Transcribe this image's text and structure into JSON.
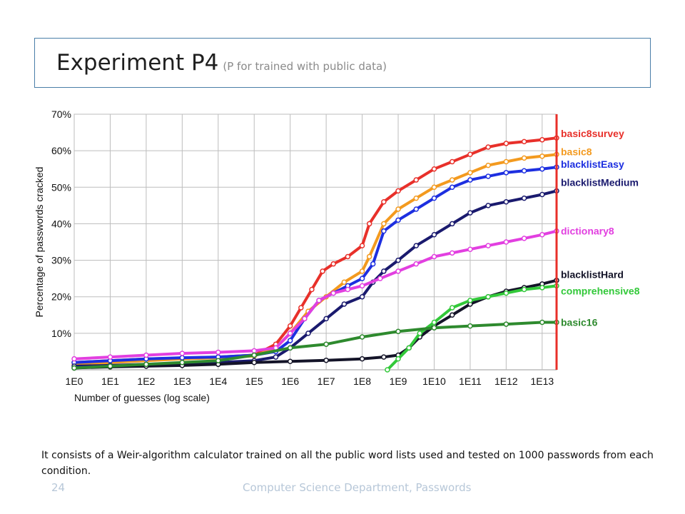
{
  "slide": {
    "title": "Experiment P4",
    "subtitle": "(P for trained with public data)",
    "caption": "It consists of a Weir-algorithm calculator trained on all the public word lists used and tested on 1000 passwords from each condition.",
    "page_number": "24",
    "footer": "Computer Science Department, Passwords"
  },
  "chart_data": {
    "type": "line",
    "xlabel": "Number of guesses (log scale)",
    "ylabel": "Percentage of passwords cracked",
    "x_ticks": [
      "1E0",
      "1E1",
      "1E2",
      "1E3",
      "1E4",
      "1E5",
      "1E6",
      "1E7",
      "1E8",
      "1E9",
      "1E10",
      "1E11",
      "1E12",
      "1E13"
    ],
    "y_ticks": [
      "10%",
      "20%",
      "30%",
      "40%",
      "50%",
      "60%",
      "70%"
    ],
    "xlim": [
      0,
      13.4
    ],
    "ylim": [
      0,
      70
    ],
    "grid": true,
    "cutoff_line_x": 13.4,
    "cutoff_color": "#e8302a",
    "legend_placement": "right, end-of-line labels",
    "series": [
      {
        "name": "basic8survey",
        "color": "#e8302a",
        "x": [
          0,
          1,
          2,
          3,
          4,
          5,
          5.6,
          6,
          6.3,
          6.6,
          6.9,
          7.2,
          7.6,
          8,
          8.2,
          8.6,
          9,
          9.5,
          10,
          10.5,
          11,
          11.5,
          12,
          12.5,
          13,
          13.4
        ],
        "y": [
          2,
          2.5,
          3,
          3.2,
          3.5,
          4,
          7,
          12,
          17,
          22,
          27,
          29,
          31,
          34,
          40,
          46,
          49,
          52,
          55,
          57,
          59,
          61,
          62,
          62.5,
          63,
          63.5
        ]
      },
      {
        "name": "basic8",
        "color": "#f39a1f",
        "x": [
          0,
          1,
          2,
          3,
          4,
          5,
          5.6,
          6,
          6.5,
          7,
          7.5,
          8,
          8.2,
          8.6,
          9,
          9.5,
          10,
          10.5,
          11,
          11.5,
          12,
          12.5,
          13,
          13.4
        ],
        "y": [
          1.5,
          2,
          2.5,
          3,
          3.3,
          3.8,
          6,
          10,
          16,
          20,
          24,
          27,
          31,
          40,
          44,
          47,
          50,
          52,
          54,
          56,
          57,
          58,
          58.5,
          59
        ]
      },
      {
        "name": "blacklistEasy",
        "color": "#1d2fe0",
        "x": [
          0,
          1,
          2,
          3,
          4,
          5,
          5.6,
          6,
          6.4,
          6.8,
          7.2,
          7.6,
          8,
          8.3,
          8.6,
          9,
          9.5,
          10,
          10.5,
          11,
          11.5,
          12,
          12.5,
          13,
          13.4
        ],
        "y": [
          2,
          2.5,
          3,
          3.3,
          3.5,
          4,
          5,
          8,
          14,
          19,
          21,
          23,
          25,
          29,
          38,
          41,
          44,
          47,
          50,
          52,
          53,
          54,
          54.5,
          55,
          55.5
        ]
      },
      {
        "name": "blacklistMedium",
        "color": "#1a1a6e",
        "x": [
          0,
          1,
          2,
          3,
          4,
          5,
          5.6,
          6,
          6.5,
          7,
          7.5,
          8,
          8.3,
          8.6,
          9,
          9.5,
          10,
          10.5,
          11,
          11.5,
          12,
          12.5,
          13,
          13.4
        ],
        "y": [
          1,
          1.2,
          1.5,
          1.8,
          2,
          2.5,
          3.5,
          6,
          10,
          14,
          18,
          20,
          24,
          27,
          30,
          34,
          37,
          40,
          43,
          45,
          46,
          47,
          48,
          49
        ]
      },
      {
        "name": "dictionary8",
        "color": "#e23fe0",
        "x": [
          0,
          1,
          2,
          3,
          4,
          5,
          5.6,
          6,
          6.4,
          6.8,
          7.2,
          7.6,
          8,
          8.5,
          9,
          9.5,
          10,
          10.5,
          11,
          11.5,
          12,
          12.5,
          13,
          13.4
        ],
        "y": [
          3,
          3.5,
          4,
          4.5,
          4.8,
          5.2,
          6,
          10,
          14,
          19,
          21,
          22,
          23,
          25,
          27,
          29,
          31,
          32,
          33,
          34,
          35,
          36,
          37,
          38
        ]
      },
      {
        "name": "blacklistHard",
        "color": "#141428",
        "x": [
          0,
          1,
          2,
          3,
          4,
          5,
          6,
          7,
          8,
          8.6,
          9,
          9.3,
          9.6,
          10,
          10.5,
          11,
          11.5,
          12,
          12.5,
          13,
          13.4
        ],
        "y": [
          0.5,
          0.8,
          1,
          1.2,
          1.5,
          2,
          2.3,
          2.6,
          3,
          3.5,
          4,
          6,
          9,
          12,
          15,
          18,
          20,
          21.5,
          22.5,
          23.5,
          24.5
        ]
      },
      {
        "name": "comprehensive8",
        "color": "#33c93a",
        "x": [
          8.7,
          9,
          9.3,
          9.6,
          10,
          10.5,
          11,
          11.5,
          12,
          12.5,
          13,
          13.4
        ],
        "y": [
          0,
          3,
          6,
          10,
          13,
          17,
          19,
          20,
          21,
          22,
          22.5,
          23
        ]
      },
      {
        "name": "basic16",
        "color": "#2e8a2e",
        "x": [
          0,
          1,
          2,
          3,
          4,
          5,
          6,
          7,
          8,
          9,
          10,
          11,
          12,
          13,
          13.4
        ],
        "y": [
          0.5,
          1,
          1.5,
          2,
          2.5,
          4,
          6,
          7,
          9,
          10.5,
          11.5,
          12,
          12.5,
          13,
          13
        ]
      }
    ]
  }
}
